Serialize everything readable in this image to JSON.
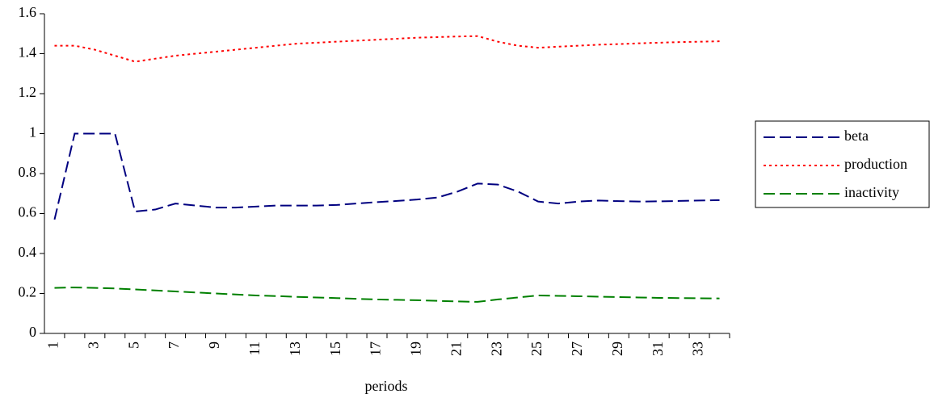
{
  "chart_data": {
    "type": "line",
    "x_label": "periods",
    "categories": [
      "1",
      null,
      "3",
      null,
      "5",
      null,
      "7",
      null,
      "9",
      null,
      "11",
      null,
      "13",
      null,
      "15",
      null,
      "17",
      null,
      "19",
      null,
      "21",
      null,
      "23",
      null,
      "25",
      null,
      "27",
      null,
      "29",
      null,
      "31",
      null,
      "33",
      null
    ],
    "series": [
      {
        "name": "beta",
        "color": "#000080",
        "style": "dashed",
        "values": [
          0.57,
          1.0,
          1.0,
          1.0,
          0.61,
          0.62,
          0.65,
          0.64,
          0.63,
          0.63,
          0.635,
          0.64,
          0.64,
          0.64,
          0.643,
          0.65,
          0.657,
          0.663,
          0.67,
          0.68,
          0.71,
          0.75,
          0.745,
          0.71,
          0.66,
          0.65,
          0.66,
          0.665,
          0.662,
          0.66,
          0.661,
          0.663,
          0.665,
          0.667
        ]
      },
      {
        "name": "production",
        "color": "#ff0000",
        "style": "dotted",
        "values": [
          1.44,
          1.44,
          1.42,
          1.39,
          1.36,
          1.375,
          1.39,
          1.4,
          1.41,
          1.42,
          1.43,
          1.44,
          1.45,
          1.455,
          1.46,
          1.465,
          1.47,
          1.475,
          1.48,
          1.483,
          1.486,
          1.488,
          1.46,
          1.44,
          1.43,
          1.435,
          1.44,
          1.445,
          1.448,
          1.452,
          1.455,
          1.458,
          1.46,
          1.462
        ]
      },
      {
        "name": "inactivity",
        "color": "#008000",
        "style": "dashed",
        "values": [
          0.228,
          0.23,
          0.228,
          0.225,
          0.22,
          0.215,
          0.21,
          0.205,
          0.2,
          0.195,
          0.19,
          0.187,
          0.183,
          0.18,
          0.177,
          0.173,
          0.17,
          0.168,
          0.166,
          0.163,
          0.16,
          0.158,
          0.17,
          0.18,
          0.19,
          0.188,
          0.186,
          0.184,
          0.182,
          0.18,
          0.178,
          0.177,
          0.176,
          0.175
        ]
      }
    ],
    "ylim": [
      0,
      1.6
    ],
    "yticks": [
      0,
      0.2,
      0.4,
      0.6,
      0.8,
      1,
      1.2,
      1.4,
      1.6
    ],
    "grid": false,
    "legend": "right"
  }
}
